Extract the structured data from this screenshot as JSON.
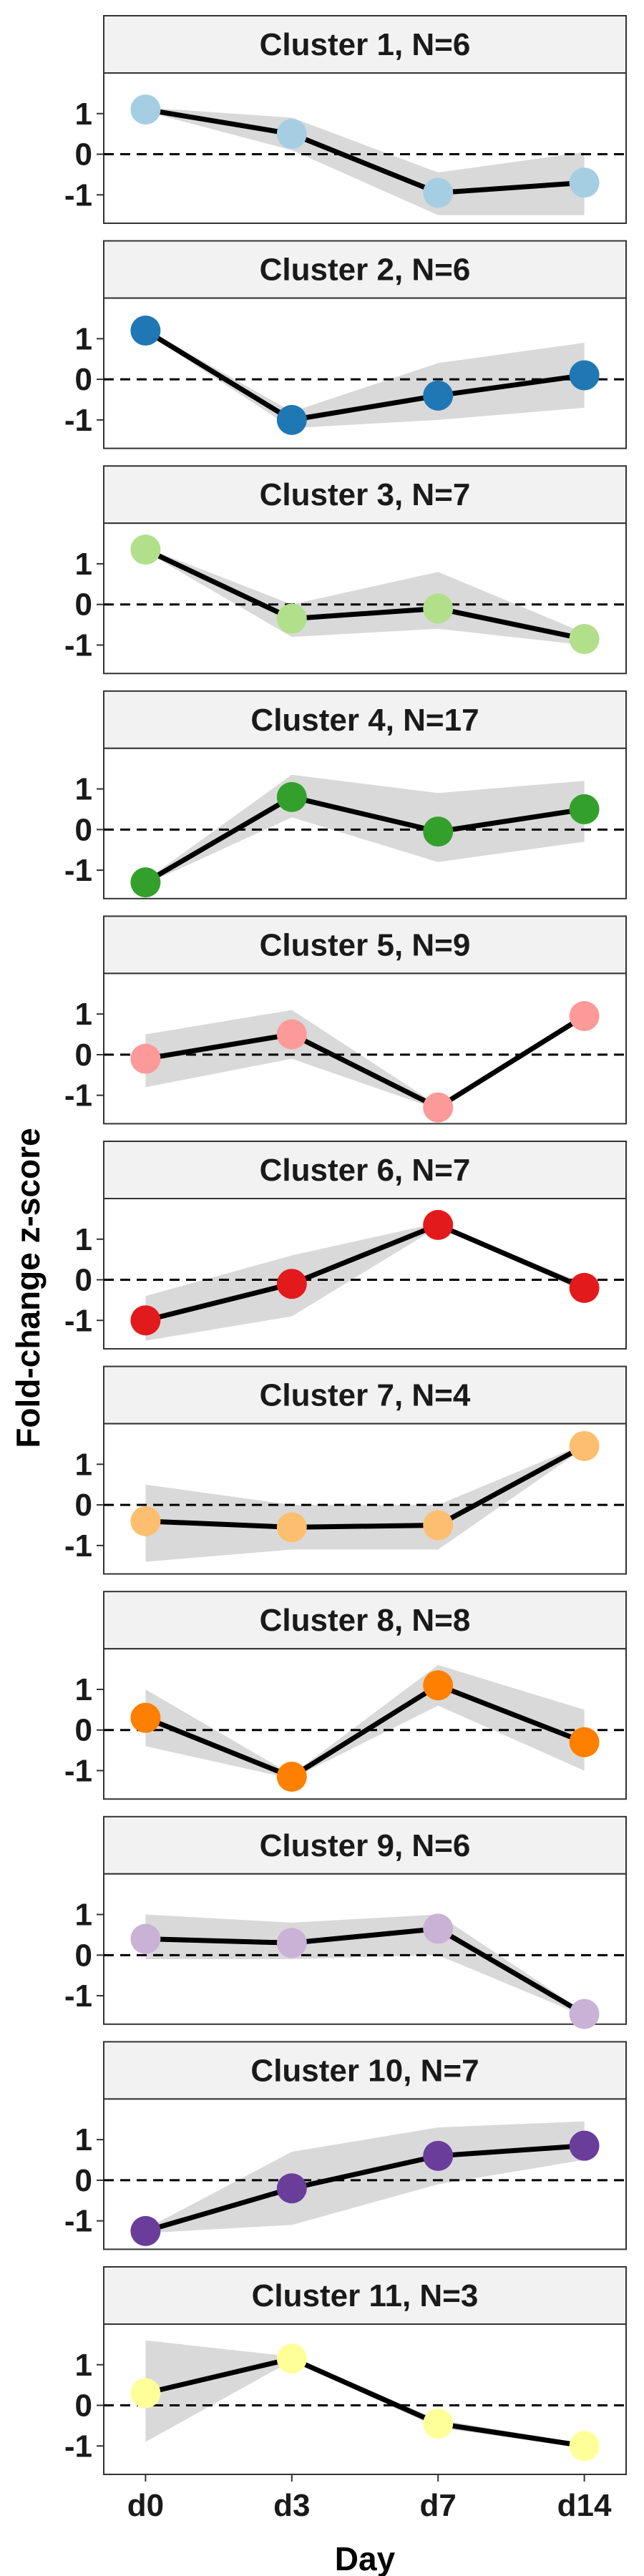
{
  "chart_data": {
    "type": "line",
    "xlabel": "Day",
    "ylabel": "Fold-change z-score",
    "x": [
      "d0",
      "d3",
      "d7",
      "d14"
    ],
    "yticks": [
      1,
      0,
      -1
    ],
    "ytick_labels": [
      "1",
      "0",
      "-1"
    ],
    "ylim": [
      -1.7,
      2.0
    ],
    "reference_line": 0,
    "ribbon_color": "#d9d9d9",
    "line_color": "#000000",
    "strip_fill": "#f2f2f2",
    "panels": [
      {
        "title": "Cluster 1, N=6",
        "color": "#a6cee3",
        "values": [
          1.1,
          0.5,
          -0.95,
          -0.7
        ],
        "band_low": [
          1.05,
          0.1,
          -1.5,
          -1.5
        ],
        "band_high": [
          1.15,
          0.9,
          -0.45,
          0.05
        ]
      },
      {
        "title": "Cluster 2, N=6",
        "color": "#1f78b4",
        "values": [
          1.2,
          -1.0,
          -0.4,
          0.1
        ],
        "band_low": [
          1.15,
          -1.2,
          -1.0,
          -0.7
        ],
        "band_high": [
          1.25,
          -0.8,
          0.4,
          0.9
        ]
      },
      {
        "title": "Cluster 3, N=7",
        "color": "#b2df8a",
        "values": [
          1.35,
          -0.35,
          -0.1,
          -0.85
        ],
        "band_low": [
          1.3,
          -0.8,
          -0.6,
          -1.0
        ],
        "band_high": [
          1.4,
          0.0,
          0.8,
          -0.7
        ]
      },
      {
        "title": "Cluster 4, N=17",
        "color": "#33a02c",
        "values": [
          -1.3,
          0.8,
          -0.05,
          0.5
        ],
        "band_low": [
          -1.35,
          0.3,
          -0.8,
          -0.3
        ],
        "band_high": [
          -1.25,
          1.35,
          0.9,
          1.2
        ]
      },
      {
        "title": "Cluster 5, N=9",
        "color": "#fb9a99",
        "values": [
          -0.1,
          0.5,
          -1.3,
          0.95
        ],
        "band_low": [
          -0.8,
          -0.1,
          -1.35,
          0.9
        ],
        "band_high": [
          0.5,
          1.1,
          -1.25,
          1.0
        ]
      },
      {
        "title": "Cluster 6, N=7",
        "color": "#e31a1c",
        "values": [
          -1.0,
          -0.1,
          1.35,
          -0.2
        ],
        "band_low": [
          -1.5,
          -0.9,
          1.3,
          -0.3
        ],
        "band_high": [
          -0.4,
          0.6,
          1.4,
          -0.1
        ]
      },
      {
        "title": "Cluster 7, N=4",
        "color": "#fdbf6f",
        "values": [
          -0.4,
          -0.55,
          -0.5,
          1.45
        ],
        "band_low": [
          -1.4,
          -1.1,
          -1.1,
          1.4
        ],
        "band_high": [
          0.5,
          0.0,
          0.0,
          1.5
        ]
      },
      {
        "title": "Cluster 8, N=8",
        "color": "#ff7f00",
        "values": [
          0.3,
          -1.15,
          1.1,
          -0.3
        ],
        "band_low": [
          -0.4,
          -1.2,
          0.6,
          -1.0
        ],
        "band_high": [
          1.0,
          -1.1,
          1.6,
          0.5
        ]
      },
      {
        "title": "Cluster 9, N=6",
        "color": "#cab2d6",
        "values": [
          0.4,
          0.3,
          0.65,
          -1.45
        ],
        "band_low": [
          -0.1,
          -0.1,
          0.0,
          -1.5
        ],
        "band_high": [
          1.0,
          0.8,
          1.0,
          -1.4
        ]
      },
      {
        "title": "Cluster 10, N=7",
        "color": "#6a3d9a",
        "values": [
          -1.25,
          -0.2,
          0.6,
          0.85
        ],
        "band_low": [
          -1.3,
          -1.1,
          -0.1,
          0.5
        ],
        "band_high": [
          -1.2,
          0.7,
          1.3,
          1.45
        ]
      },
      {
        "title": "Cluster 11, N=3",
        "color": "#ffff99",
        "values": [
          0.3,
          1.15,
          -0.45,
          -1.0
        ],
        "band_low": [
          -0.9,
          1.1,
          -0.55,
          -1.05
        ],
        "band_high": [
          1.6,
          1.2,
          -0.35,
          -0.95
        ]
      }
    ]
  }
}
